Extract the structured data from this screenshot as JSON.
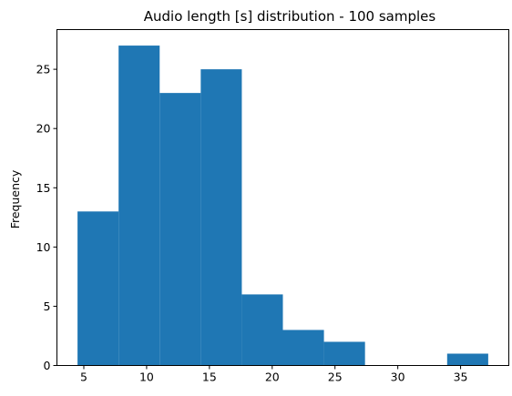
{
  "chart_data": {
    "type": "bar",
    "title": "Audio length [s] distribution - 100 samples",
    "xlabel": "",
    "ylabel": "Frequency",
    "bin_edges": [
      4.5,
      7.77,
      11.04,
      14.31,
      17.58,
      20.85,
      24.12,
      27.39,
      30.66,
      33.93,
      37.2
    ],
    "values": [
      13,
      27,
      23,
      25,
      6,
      3,
      2,
      0,
      0,
      1
    ],
    "xlim": [
      2.86,
      38.84
    ],
    "ylim": [
      0,
      28.35
    ],
    "xticks": [
      5,
      10,
      15,
      20,
      25,
      30,
      35
    ],
    "yticks": [
      0,
      5,
      10,
      15,
      20,
      25
    ],
    "bar_color": "#1f77b4",
    "grid": false,
    "legend": "none"
  }
}
